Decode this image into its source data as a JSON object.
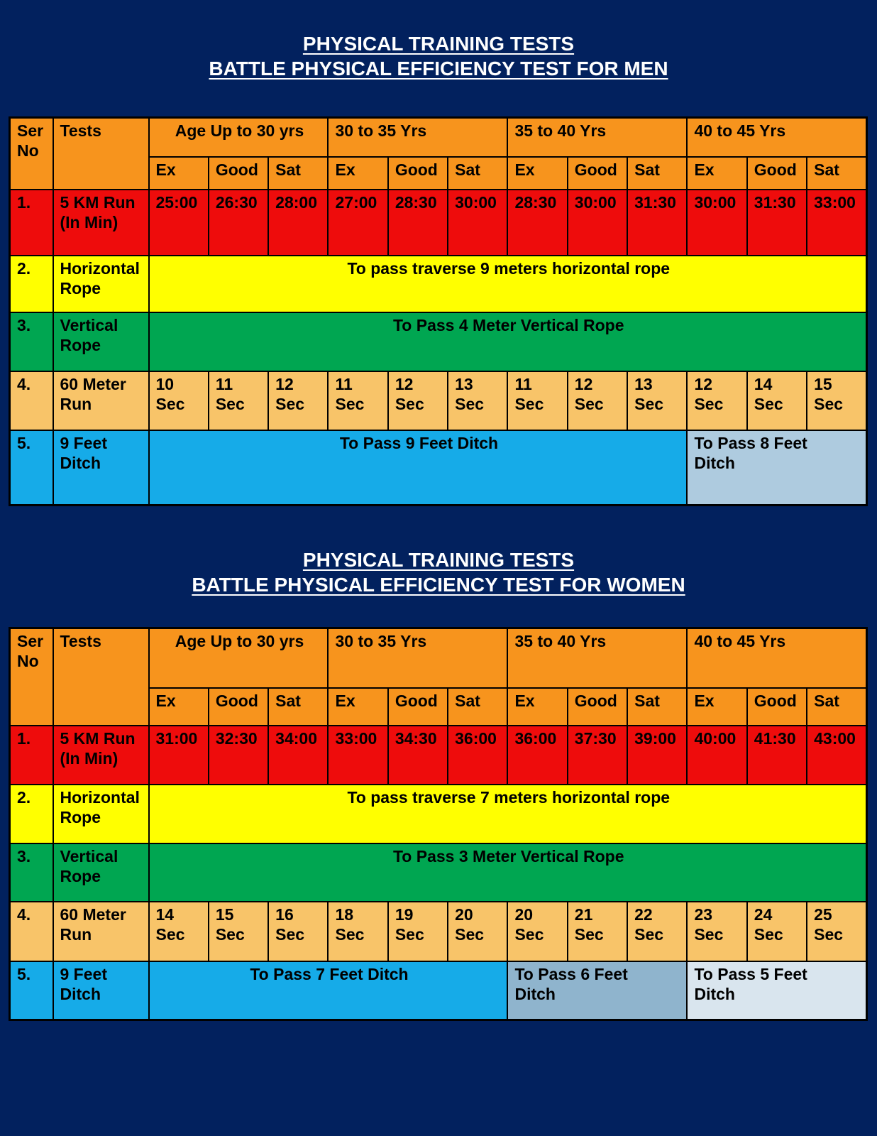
{
  "titles": {
    "men_line1": "PHYSICAL TRAINING TESTS",
    "men_line2": "BATTLE PHYSICAL EFFICIENCY TEST FOR MEN",
    "women_line1": "PHYSICAL TRAINING TESTS",
    "women_line2": "BATTLE PHYSICAL EFFICIENCY TEST FOR WOMEN"
  },
  "header": {
    "ser_no": "Ser\nNo",
    "tests": "Tests",
    "age_groups": [
      "Age Up to 30 yrs",
      "30 to 35 Yrs",
      "35 to 40 Yrs",
      "40 to 45 Yrs"
    ],
    "grades": [
      "Ex",
      "Good",
      "Sat"
    ]
  },
  "men": {
    "run": {
      "ser": "1.",
      "label": "5 KM Run\n(In Min)",
      "values": [
        "25:00",
        "26:30",
        "28:00",
        "27:00",
        "28:30",
        "30:00",
        "28:30",
        "30:00",
        "31:30",
        "30:00",
        "31:30",
        "33:00"
      ]
    },
    "horizontal_rope": {
      "ser": "2.",
      "label": "Horizontal\nRope",
      "note": "To pass traverse 9 meters horizontal rope"
    },
    "vertical_rope": {
      "ser": "3.",
      "label": "Vertical\nRope",
      "note": "To Pass 4 Meter Vertical Rope"
    },
    "sprint": {
      "ser": "4.",
      "label": "60 Meter\nRun",
      "values": [
        "10\nSec",
        "11\nSec",
        "12\nSec",
        "11\nSec",
        "12\nSec",
        "13\nSec",
        "11\nSec",
        "12\nSec",
        "13\nSec",
        "12\nSec",
        "14\nSec",
        "15\nSec"
      ]
    },
    "ditch": {
      "ser": "5.",
      "label": "9 Feet\nDitch",
      "notes": [
        "To Pass 9 Feet Ditch",
        "To Pass 8 Feet\nDitch"
      ]
    }
  },
  "women": {
    "run": {
      "ser": "1.",
      "label": "5 KM Run\n(In Min)",
      "values": [
        "31:00",
        "32:30",
        "34:00",
        "33:00",
        "34:30",
        "36:00",
        "36:00",
        "37:30",
        "39:00",
        "40:00",
        "41:30",
        "43:00"
      ]
    },
    "horizontal_rope": {
      "ser": "2.",
      "label": "Horizontal\nRope",
      "note": "To pass traverse 7 meters horizontal rope"
    },
    "vertical_rope": {
      "ser": "3.",
      "label": "Vertical\nRope",
      "note": "To Pass 3 Meter Vertical Rope"
    },
    "sprint": {
      "ser": "4.",
      "label": "60 Meter\nRun",
      "values": [
        "14\nSec",
        "15\nSec",
        "16\nSec",
        "18\nSec",
        "19\nSec",
        "20\nSec",
        "20\nSec",
        "21\nSec",
        "22\nSec",
        "23\nSec",
        "24\nSec",
        "25\nSec"
      ]
    },
    "ditch": {
      "ser": "5.",
      "label": "9 Feet\nDitch",
      "notes": [
        "To Pass 7 Feet Ditch",
        "To Pass 6 Feet\nDitch",
        "To Pass 5 Feet\nDitch"
      ]
    }
  },
  "colors": {
    "background_navy": "#02215E",
    "header_orange": "#F7941D",
    "row_red": "#EE0C0C",
    "row_yellow": "#FFFF00",
    "row_green": "#00A651",
    "row_tan": "#F8C469",
    "row_blue": "#16ABE8",
    "ditch_8ft_blue": "#AECBDF",
    "ditch_6ft_blue": "#8FB4CD",
    "ditch_5ft_blue": "#D9E5EE",
    "title_text": "#FFFFFF",
    "table_text": "#000000"
  }
}
